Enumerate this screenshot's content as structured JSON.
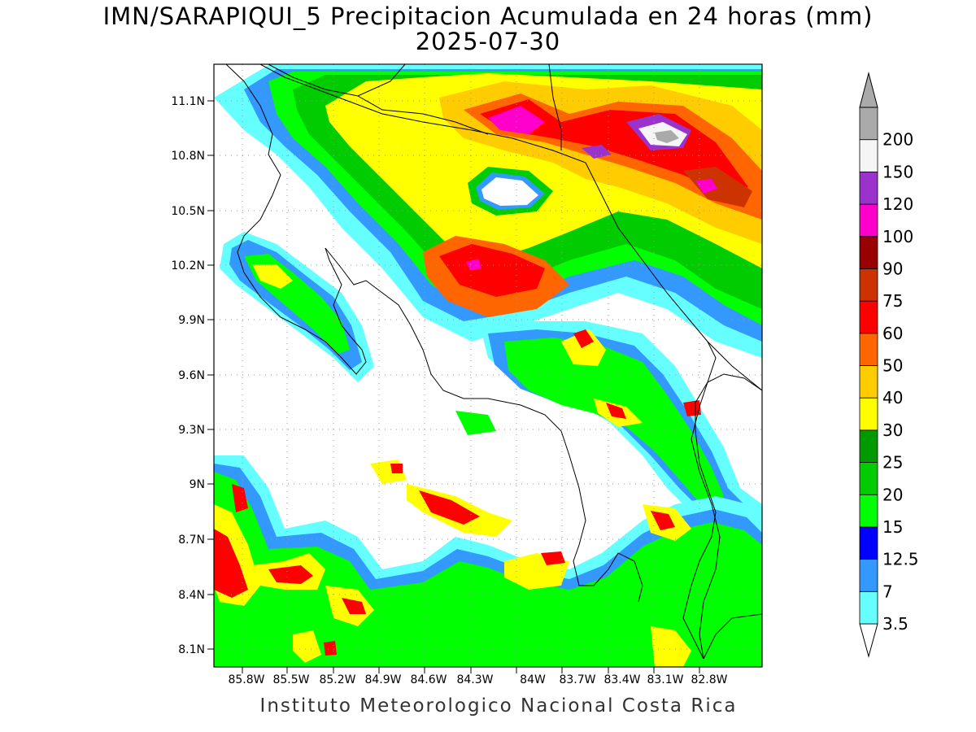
{
  "title_line1": "IMN/SARAPIQUI_5 Precipitacion Acumulada en 24 horas (mm)",
  "title_line2": "2025-07-30",
  "footer": "Instituto Meteorologico Nacional Costa Rica",
  "latitude_labels": [
    "11.1N",
    "10.8N",
    "10.5N",
    "10.2N",
    "9.9N",
    "9.6N",
    "9.3N",
    "9N",
    "8.7N",
    "8.4N",
    "8.1N"
  ],
  "longitude_labels": [
    "85.8W",
    "85.5W",
    "85.2W",
    "84.9W",
    "84.6W",
    "84.3W",
    "84W",
    "83.7W",
    "83.4W",
    "83.1W",
    "82.8W"
  ],
  "colorbar": {
    "levels": [
      "3.5",
      "7",
      "12.5",
      "15",
      "20",
      "25",
      "30",
      "40",
      "50",
      "60",
      "75",
      "90",
      "100",
      "120",
      "150",
      "200"
    ],
    "colors": [
      "#66ffff",
      "#3399ff",
      "#0000ff",
      "#00ff00",
      "#00cc00",
      "#009900",
      "#ffff00",
      "#ffcc00",
      "#ff6600",
      "#ff0000",
      "#cc3300",
      "#990000",
      "#ff00cc",
      "#9933cc",
      "#f5f5f5",
      "#aaaaaa"
    ]
  },
  "grid": "dotted",
  "map_content": "Accumulated 24h precipitation field over Costa Rica with coastline and border outlines"
}
